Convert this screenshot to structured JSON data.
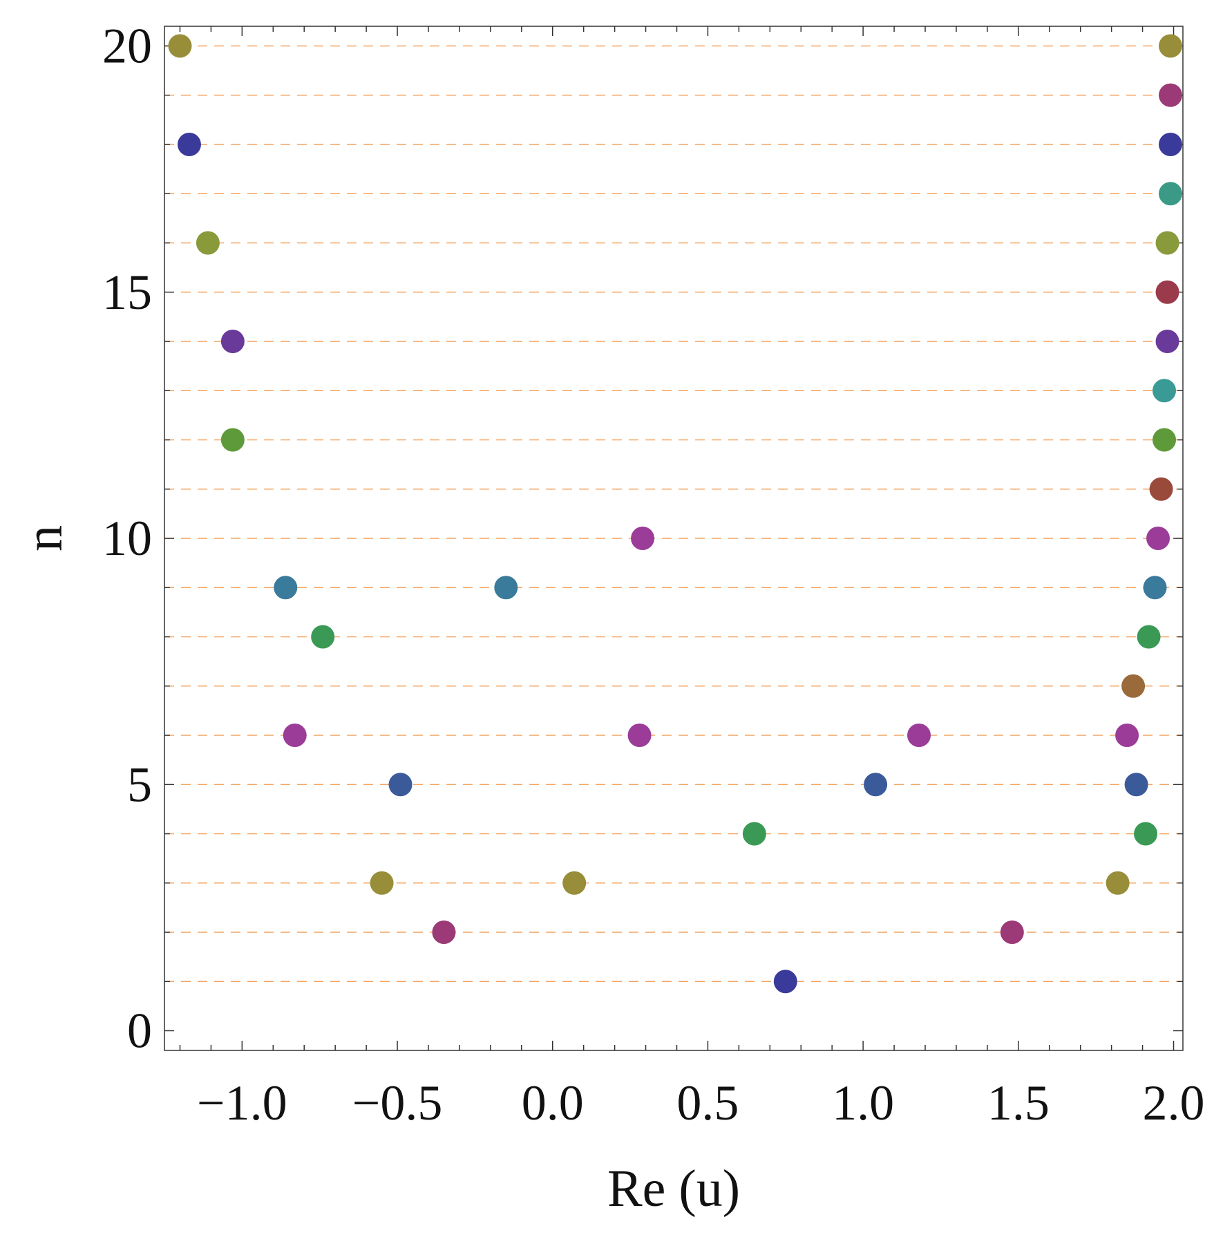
{
  "chart_data": {
    "type": "scatter",
    "title": "",
    "xlabel": "Re (u)",
    "ylabel": "n",
    "xlim": [
      -1.25,
      2.03
    ],
    "ylim": [
      -0.4,
      20.4
    ],
    "x_ticks": [
      -1.0,
      -0.5,
      0.0,
      0.5,
      1.0,
      1.5,
      2.0
    ],
    "x_tick_labels": [
      "−1.0",
      "−0.5",
      "0.0",
      "0.5",
      "1.0",
      "1.5",
      "2.0"
    ],
    "y_ticks": [
      0,
      5,
      10,
      15,
      20
    ],
    "y_tick_labels": [
      "0",
      "5",
      "10",
      "15",
      "20"
    ],
    "reference_lines": {
      "style": "dashed",
      "orientation": "horizontal",
      "y_values": [
        1,
        2,
        3,
        4,
        5,
        6,
        7,
        8,
        9,
        10,
        11,
        12,
        13,
        14,
        15,
        16,
        17,
        18,
        19,
        20
      ],
      "color": "#f4a460"
    },
    "grid": false,
    "series": [
      {
        "color": "#3a3a9a",
        "points": [
          {
            "x": 0.75,
            "y": 1
          },
          {
            "x": -1.17,
            "y": 18
          },
          {
            "x": 1.99,
            "y": 18
          }
        ]
      },
      {
        "color": "#9b3a76",
        "points": [
          {
            "x": -0.35,
            "y": 2
          },
          {
            "x": 1.48,
            "y": 2
          },
          {
            "x": 1.99,
            "y": 19
          }
        ]
      },
      {
        "color": "#988d38",
        "points": [
          {
            "x": -0.55,
            "y": 3
          },
          {
            "x": 0.07,
            "y": 3
          },
          {
            "x": 1.82,
            "y": 3
          },
          {
            "x": -1.2,
            "y": 20
          },
          {
            "x": 1.99,
            "y": 20
          }
        ]
      },
      {
        "color": "#3a9a55",
        "points": [
          {
            "x": 0.65,
            "y": 4
          },
          {
            "x": 1.91,
            "y": 4
          },
          {
            "x": -0.74,
            "y": 8
          },
          {
            "x": 1.92,
            "y": 8
          }
        ]
      },
      {
        "color": "#3a5a9a",
        "points": [
          {
            "x": -0.49,
            "y": 5
          },
          {
            "x": 1.04,
            "y": 5
          },
          {
            "x": 1.88,
            "y": 5
          }
        ]
      },
      {
        "color": "#9a3c98",
        "points": [
          {
            "x": -0.83,
            "y": 6
          },
          {
            "x": 0.28,
            "y": 6
          },
          {
            "x": 1.18,
            "y": 6
          },
          {
            "x": 1.85,
            "y": 6
          },
          {
            "x": 0.29,
            "y": 10
          },
          {
            "x": 1.95,
            "y": 10
          }
        ]
      },
      {
        "color": "#9a6a3a",
        "points": [
          {
            "x": 1.87,
            "y": 7
          }
        ]
      },
      {
        "color": "#3a7a9a",
        "points": [
          {
            "x": -0.86,
            "y": 9
          },
          {
            "x": -0.15,
            "y": 9
          },
          {
            "x": 1.94,
            "y": 9
          }
        ]
      },
      {
        "color": "#9a4a3a",
        "points": [
          {
            "x": 1.96,
            "y": 11
          }
        ]
      },
      {
        "color": "#5e9a3a",
        "points": [
          {
            "x": -1.03,
            "y": 12
          },
          {
            "x": 1.97,
            "y": 12
          }
        ]
      },
      {
        "color": "#3a9a96",
        "points": [
          {
            "x": 1.97,
            "y": 13
          }
        ]
      },
      {
        "color": "#6a3a9a",
        "points": [
          {
            "x": -1.03,
            "y": 14
          },
          {
            "x": 1.98,
            "y": 14
          }
        ]
      },
      {
        "color": "#9a3a4a",
        "points": [
          {
            "x": 1.98,
            "y": 15
          }
        ]
      },
      {
        "color": "#889a3a",
        "points": [
          {
            "x": -1.11,
            "y": 16
          },
          {
            "x": 1.98,
            "y": 16
          }
        ]
      },
      {
        "color": "#3a9a86",
        "points": [
          {
            "x": 1.99,
            "y": 17
          }
        ]
      }
    ]
  }
}
